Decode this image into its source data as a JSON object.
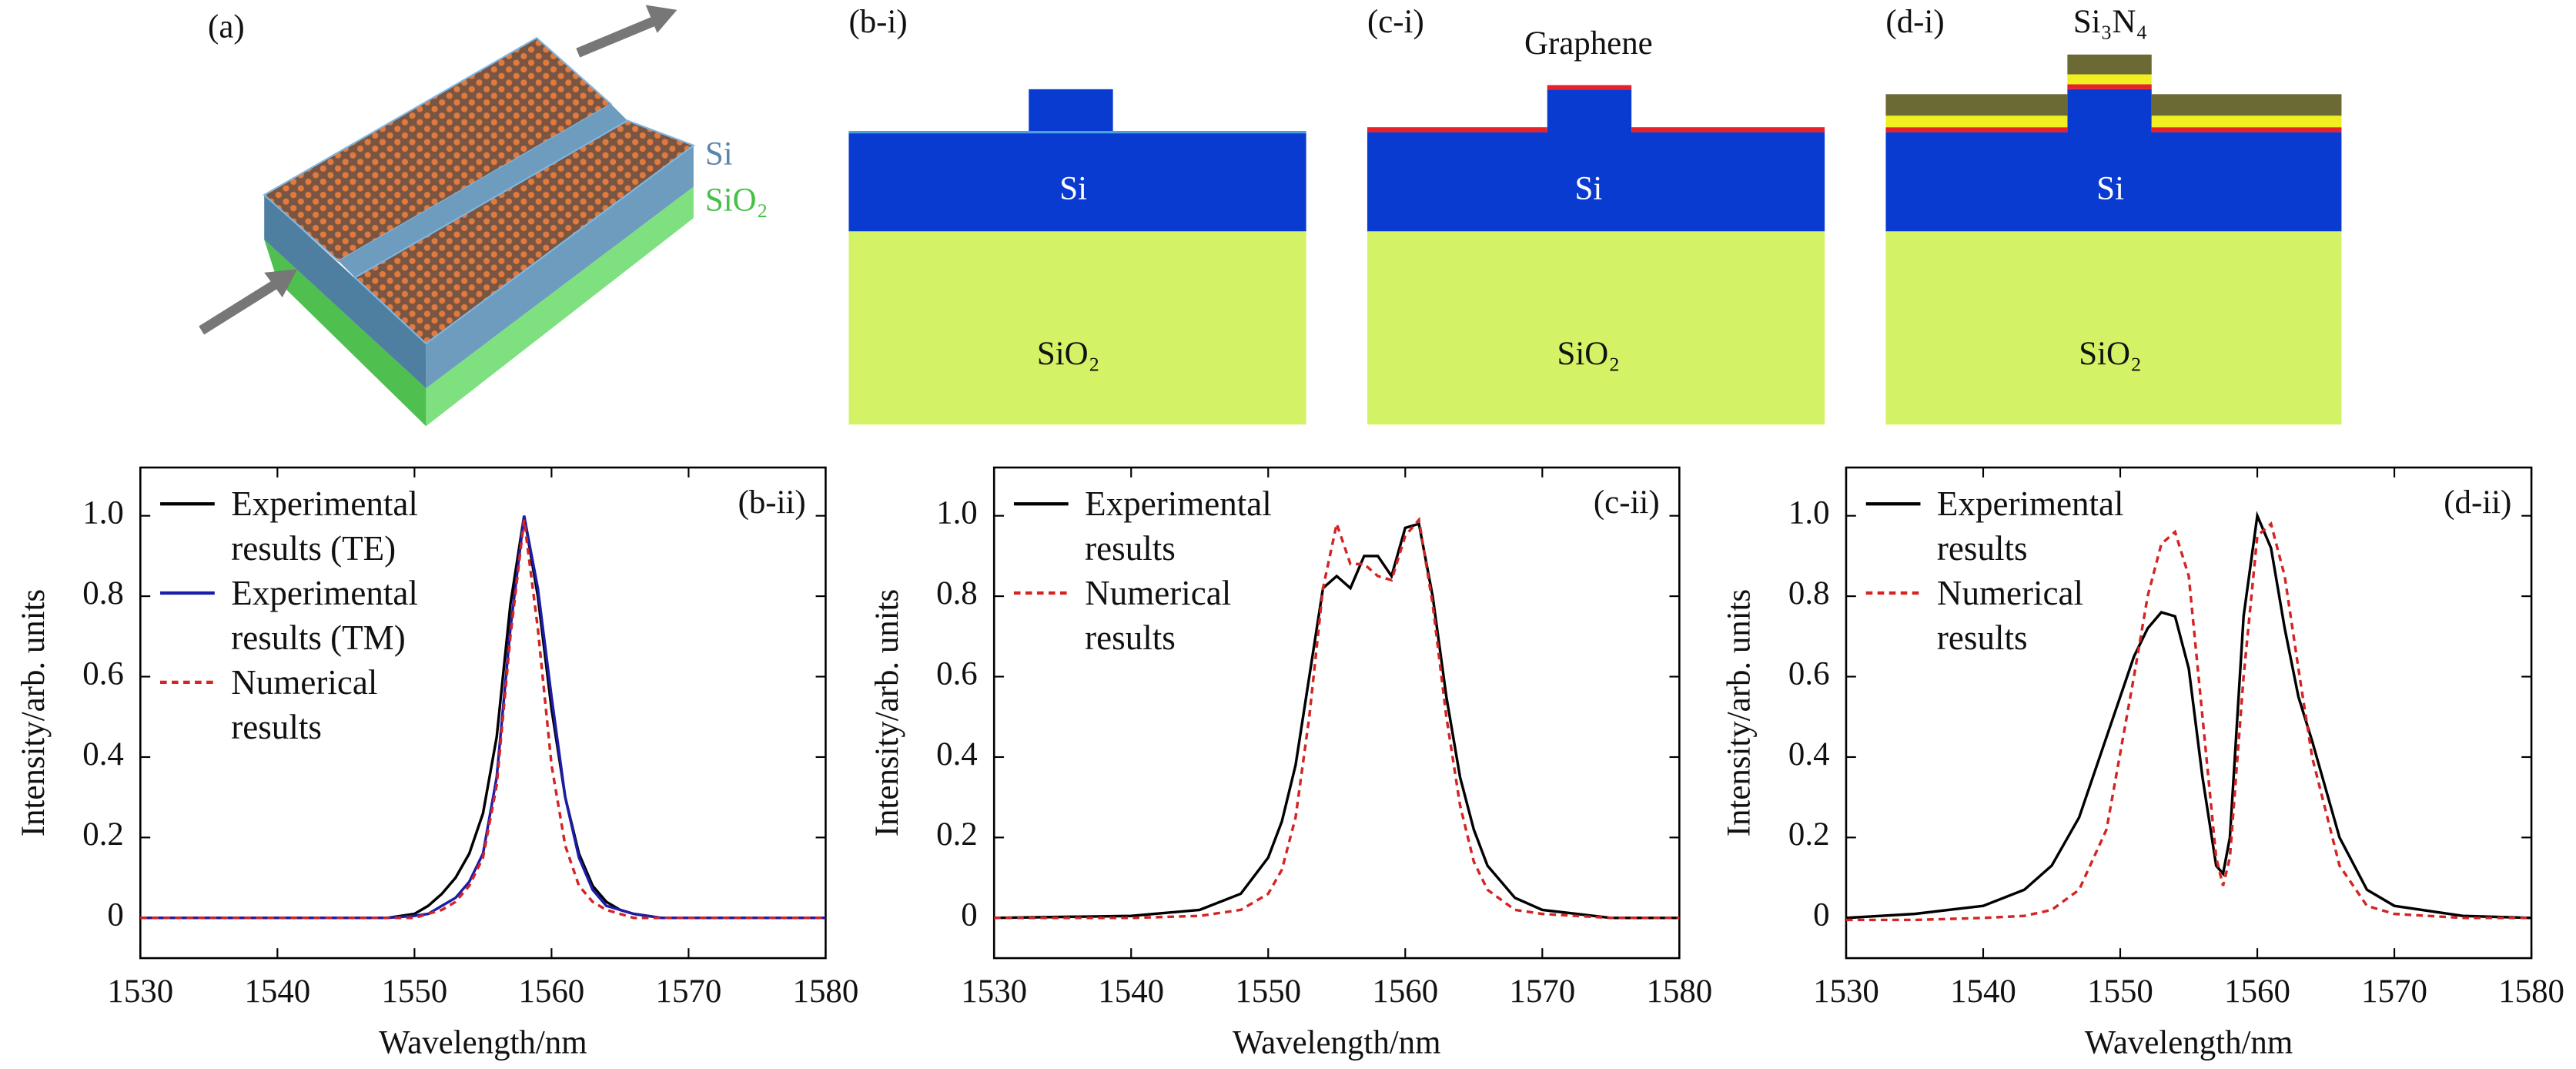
{
  "panel_a": {
    "label": "(a)",
    "layers": [
      "Si",
      "SiO₂"
    ]
  },
  "cross_sections": [
    {
      "label": "(b-i)",
      "core": "Si",
      "substrate": "SiO₂"
    },
    {
      "label": "(c-i)",
      "top_layer": "Graphene",
      "core": "Si",
      "substrate": "SiO₂"
    },
    {
      "label": "(d-i)",
      "top_layer": "Si₃N₄",
      "core": "Si",
      "substrate": "SiO₂"
    }
  ],
  "chart_data": [
    {
      "type": "line",
      "panel_label": "(b-ii)",
      "xlabel": "Wavelength/nm",
      "ylabel": "Intensity/arb. units",
      "xlim": [
        1530,
        1580
      ],
      "ylim": [
        -0.1,
        1.12
      ],
      "xticks": [
        1530,
        1540,
        1550,
        1560,
        1570,
        1580
      ],
      "yticks": [
        0,
        0.2,
        0.4,
        0.6,
        0.8,
        {
          "value": 1,
          "label": "1.0"
        }
      ],
      "legend": "upper left",
      "grid": false,
      "x": [
        1530,
        1540,
        1545,
        1548,
        1550,
        1551,
        1552,
        1553,
        1554,
        1555,
        1556,
        1557,
        1558,
        1559,
        1560,
        1561,
        1562,
        1563,
        1564,
        1565,
        1566,
        1568,
        1570,
        1575,
        1580
      ],
      "series": [
        {
          "name": "Experimental results (TE)",
          "color": "#000000",
          "style": "solid",
          "values": [
            0,
            0,
            0,
            0,
            0.01,
            0.03,
            0.06,
            0.1,
            0.16,
            0.26,
            0.45,
            0.78,
            1.0,
            0.8,
            0.52,
            0.3,
            0.16,
            0.08,
            0.04,
            0.02,
            0.01,
            0,
            0,
            0,
            0
          ]
        },
        {
          "name": "Experimental results (TM)",
          "color": "#1c1ca8",
          "style": "solid",
          "values": [
            0,
            0,
            0,
            0,
            0.005,
            0.01,
            0.03,
            0.05,
            0.09,
            0.16,
            0.35,
            0.72,
            1.0,
            0.82,
            0.55,
            0.3,
            0.15,
            0.07,
            0.03,
            0.02,
            0.01,
            0,
            0,
            0,
            0
          ]
        },
        {
          "name": "Numerical results",
          "color": "#d42424",
          "style": "dashed",
          "values": [
            0,
            0,
            0,
            0,
            0,
            0.01,
            0.02,
            0.04,
            0.08,
            0.15,
            0.33,
            0.7,
            0.99,
            0.72,
            0.38,
            0.18,
            0.08,
            0.04,
            0.02,
            0.01,
            0,
            0,
            0,
            0,
            0
          ]
        }
      ]
    },
    {
      "type": "line",
      "panel_label": "(c-ii)",
      "xlabel": "Wavelength/nm",
      "ylabel": "Intensity/arb. units",
      "xlim": [
        1530,
        1580
      ],
      "ylim": [
        -0.1,
        1.12
      ],
      "xticks": [
        1530,
        1540,
        1550,
        1560,
        1570,
        1580
      ],
      "yticks": [
        0,
        0.2,
        0.4,
        0.6,
        0.8,
        {
          "value": 1,
          "label": "1.0"
        }
      ],
      "legend": "upper left",
      "grid": false,
      "x": [
        1530,
        1540,
        1545,
        1548,
        1550,
        1551,
        1552,
        1553,
        1554,
        1555,
        1556,
        1557,
        1558,
        1559,
        1560,
        1561,
        1562,
        1563,
        1564,
        1565,
        1566,
        1568,
        1570,
        1575,
        1580
      ],
      "series": [
        {
          "name": "Experimental results",
          "color": "#000000",
          "style": "solid",
          "values": [
            0,
            0.005,
            0.02,
            0.06,
            0.15,
            0.24,
            0.38,
            0.6,
            0.82,
            0.85,
            0.82,
            0.9,
            0.9,
            0.85,
            0.97,
            0.98,
            0.8,
            0.55,
            0.35,
            0.22,
            0.13,
            0.05,
            0.02,
            0,
            0
          ]
        },
        {
          "name": "Numerical results",
          "color": "#d42424",
          "style": "dashed",
          "values": [
            0,
            0,
            0.005,
            0.02,
            0.06,
            0.12,
            0.25,
            0.5,
            0.82,
            0.98,
            0.88,
            0.88,
            0.85,
            0.84,
            0.95,
            0.99,
            0.78,
            0.5,
            0.28,
            0.14,
            0.07,
            0.02,
            0.01,
            0,
            0
          ]
        }
      ]
    },
    {
      "type": "line",
      "panel_label": "(d-ii)",
      "xlabel": "Wavelength/nm",
      "ylabel": "Intensity/arb. units",
      "xlim": [
        1530,
        1580
      ],
      "ylim": [
        -0.1,
        1.12
      ],
      "xticks": [
        1530,
        1540,
        1550,
        1560,
        1570,
        1580
      ],
      "yticks": [
        0,
        0.2,
        0.4,
        0.6,
        0.8,
        {
          "value": 1,
          "label": "1.0"
        }
      ],
      "legend": "upper left",
      "grid": false,
      "x": [
        1530,
        1535,
        1540,
        1543,
        1545,
        1547,
        1549,
        1551,
        1552,
        1553,
        1554,
        1555,
        1556,
        1557,
        1557.5,
        1558,
        1559,
        1560,
        1561,
        1562,
        1563,
        1564,
        1566,
        1568,
        1570,
        1575,
        1580
      ],
      "series": [
        {
          "name": "Experimental results",
          "color": "#000000",
          "style": "solid",
          "values": [
            0,
            0.01,
            0.03,
            0.07,
            0.13,
            0.25,
            0.45,
            0.65,
            0.72,
            0.76,
            0.75,
            0.62,
            0.35,
            0.13,
            0.11,
            0.2,
            0.75,
            1.0,
            0.92,
            0.72,
            0.55,
            0.44,
            0.2,
            0.07,
            0.03,
            0.005,
            0
          ]
        },
        {
          "name": "Numerical results",
          "color": "#d42424",
          "style": "dashed",
          "values": [
            -0.005,
            -0.005,
            0,
            0.005,
            0.02,
            0.07,
            0.22,
            0.6,
            0.8,
            0.93,
            0.96,
            0.85,
            0.5,
            0.15,
            0.08,
            0.15,
            0.6,
            0.95,
            0.98,
            0.85,
            0.62,
            0.4,
            0.13,
            0.03,
            0.01,
            0,
            0
          ]
        }
      ]
    }
  ]
}
